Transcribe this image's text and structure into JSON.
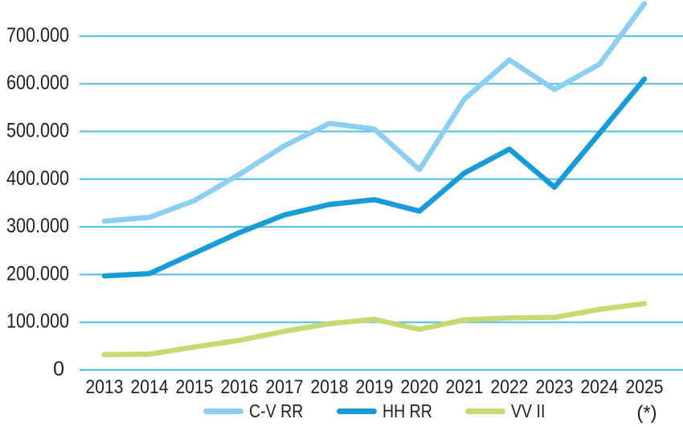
{
  "colors": {
    "background": "#FFFFFF",
    "grid": "#49BFEE",
    "text": "#231F20"
  },
  "chart_data": {
    "type": "line",
    "title": "",
    "xlabel": "",
    "ylabel": "",
    "grid": true,
    "legend_position": "bottom",
    "ylim": [
      0,
      775000
    ],
    "x_categories": [
      "2013",
      "2014",
      "2015",
      "2016",
      "2017",
      "2018",
      "2019",
      "2020",
      "2021",
      "2022",
      "2023",
      "2024",
      "2025"
    ],
    "x_footnote": "(*)",
    "y_ticks": [
      {
        "label": "700.000",
        "value": 700000
      },
      {
        "label": "600.000",
        "value": 600000
      },
      {
        "label": "500.000",
        "value": 500000
      },
      {
        "label": "400.000",
        "value": 400000
      },
      {
        "label": "300.000",
        "value": 300000
      },
      {
        "label": "200.000",
        "value": 200000
      },
      {
        "label": "100.000",
        "value": 100000
      },
      {
        "label": "0",
        "value": 0
      }
    ],
    "series": [
      {
        "name": "C-V RR",
        "color": "#8DCFF2",
        "values": [
          312000,
          320000,
          355000,
          410000,
          470000,
          517000,
          505000,
          420000,
          568000,
          650000,
          588000,
          641000,
          768000
        ]
      },
      {
        "name": "HH RR",
        "color": "#189CD8",
        "values": [
          197000,
          202000,
          245000,
          288000,
          325000,
          347000,
          357000,
          333000,
          413000,
          463000,
          383000,
          496000,
          610000
        ]
      },
      {
        "name": "VV II",
        "color": "#C7DA71",
        "values": [
          32000,
          33000,
          48000,
          62000,
          81000,
          97000,
          106000,
          85000,
          105000,
          109000,
          110000,
          127000,
          139000
        ]
      }
    ]
  }
}
